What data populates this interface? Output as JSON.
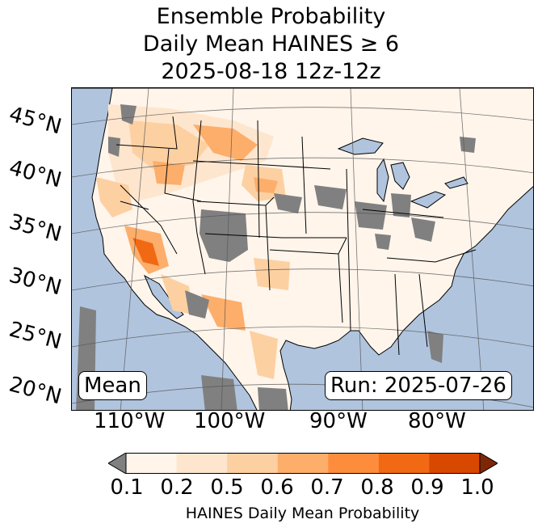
{
  "title": {
    "line1": "Ensemble Probability",
    "line2": "Daily Mean HAINES ≥ 6",
    "line3": "2025-08-18 12z-12z"
  },
  "lat_labels": [
    "45°N",
    "40°N",
    "35°N",
    "30°N",
    "25°N",
    "20°N"
  ],
  "lon_labels": [
    "110°W",
    "100°W",
    "90°W",
    "80°W"
  ],
  "boxes": {
    "mean": "Mean",
    "run": "Run: 2025-07-26"
  },
  "colorbar": {
    "ticks": [
      "0.1",
      "0.2",
      "0.5",
      "0.6",
      "0.7",
      "0.8",
      "0.9",
      "1.0"
    ],
    "label": "HAINES Daily Mean Probability",
    "colors": [
      "#fff5eb",
      "#fee6ce",
      "#fdd0a2",
      "#fdae6b",
      "#fd8d3c",
      "#f16913",
      "#d94801",
      "#a63603"
    ],
    "under_color": "#808080",
    "over_color": "#7f2704"
  },
  "colors": {
    "ocean": "#b0c4de",
    "land_missing": "#808080",
    "land_base": "#fff5eb"
  }
}
